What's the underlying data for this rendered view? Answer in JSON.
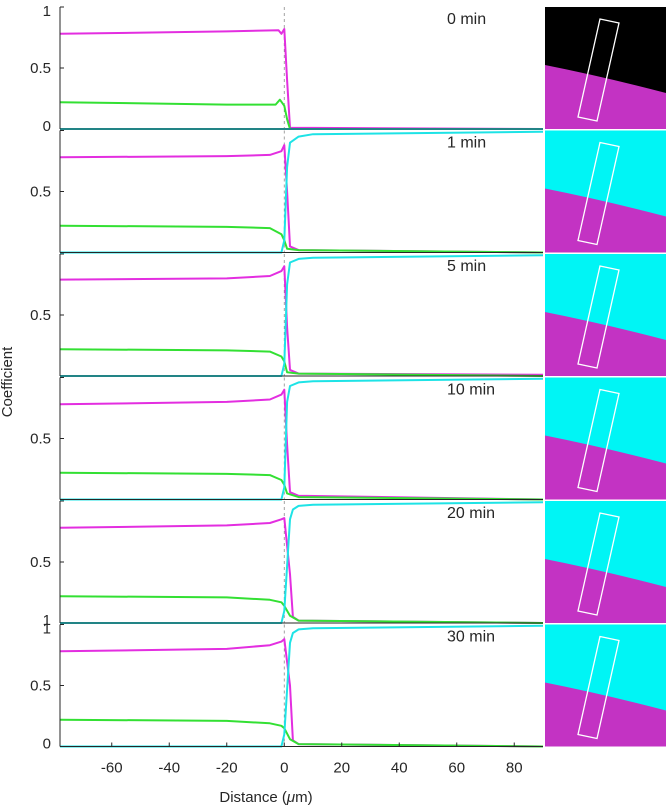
{
  "chart_data": {
    "type": "line",
    "xlabel_prefix": "Distance (",
    "xlabel_mu": "μ",
    "xlabel_suffix": "m)",
    "ylabel": "Coefficient",
    "xlim": [
      -78,
      90
    ],
    "xticks": [
      -60,
      -40,
      -20,
      0,
      20,
      40,
      60,
      80
    ],
    "ylim": [
      0,
      1
    ],
    "interface_x": 0,
    "series_colors": {
      "magenta": "#e32ee0",
      "green": "#33e033",
      "cyan": "#1ee3e6"
    },
    "inset_colors": {
      "black": "#000000",
      "cyan": "#00f5f5",
      "magenta": "#c333c3",
      "box": "#ffffff"
    },
    "panels": [
      {
        "label": "0 min",
        "ytick_labels": [
          "1",
          "0.5",
          "0"
        ],
        "series": [
          {
            "color": "magenta",
            "points": [
              [
                -78,
                0.78
              ],
              [
                -20,
                0.8
              ],
              [
                -2,
                0.81
              ],
              [
                -1,
                0.78
              ],
              [
                0,
                0.82
              ],
              [
                1,
                0.4
              ],
              [
                2,
                0.01
              ],
              [
                90,
                0.0
              ]
            ]
          },
          {
            "color": "green",
            "points": [
              [
                -78,
                0.22
              ],
              [
                -20,
                0.2
              ],
              [
                -3,
                0.2
              ],
              [
                -1.5,
                0.24
              ],
              [
                0,
                0.19
              ],
              [
                1,
                0.08
              ],
              [
                2,
                0.0
              ],
              [
                90,
                0.0
              ]
            ]
          },
          {
            "color": "cyan",
            "points": [
              [
                -78,
                0.0
              ],
              [
                90,
                0.0
              ]
            ]
          }
        ]
      },
      {
        "label": "1 min",
        "ytick_labels": [
          "",
          "0.5",
          ""
        ],
        "series": [
          {
            "color": "magenta",
            "points": [
              [
                -78,
                0.78
              ],
              [
                -20,
                0.79
              ],
              [
                -5,
                0.8
              ],
              [
                -1,
                0.83
              ],
              [
                0,
                0.88
              ],
              [
                1,
                0.5
              ],
              [
                2,
                0.05
              ],
              [
                5,
                0.02
              ],
              [
                90,
                0.0
              ]
            ]
          },
          {
            "color": "green",
            "points": [
              [
                -78,
                0.22
              ],
              [
                -20,
                0.21
              ],
              [
                -5,
                0.2
              ],
              [
                -1,
                0.15
              ],
              [
                0,
                0.1
              ],
              [
                1,
                0.03
              ],
              [
                5,
                0.02
              ],
              [
                90,
                0.0
              ]
            ]
          },
          {
            "color": "cyan",
            "points": [
              [
                -78,
                0.0
              ],
              [
                -1,
                0.0
              ],
              [
                0,
                0.1
              ],
              [
                1,
                0.7
              ],
              [
                2,
                0.9
              ],
              [
                5,
                0.95
              ],
              [
                10,
                0.97
              ],
              [
                90,
                0.99
              ]
            ]
          }
        ]
      },
      {
        "label": "5 min",
        "ytick_labels": [
          "",
          "0.5",
          ""
        ],
        "series": [
          {
            "color": "magenta",
            "points": [
              [
                -78,
                0.79
              ],
              [
                -20,
                0.8
              ],
              [
                -5,
                0.82
              ],
              [
                -1,
                0.86
              ],
              [
                0,
                0.9
              ],
              [
                1,
                0.4
              ],
              [
                2,
                0.05
              ],
              [
                5,
                0.02
              ],
              [
                90,
                0.01
              ]
            ]
          },
          {
            "color": "green",
            "points": [
              [
                -78,
                0.22
              ],
              [
                -20,
                0.21
              ],
              [
                -5,
                0.2
              ],
              [
                -1,
                0.16
              ],
              [
                0,
                0.12
              ],
              [
                1,
                0.03
              ],
              [
                5,
                0.02
              ],
              [
                90,
                0.0
              ]
            ]
          },
          {
            "color": "cyan",
            "points": [
              [
                -78,
                0.0
              ],
              [
                -1,
                0.0
              ],
              [
                0,
                0.1
              ],
              [
                1,
                0.75
              ],
              [
                2,
                0.93
              ],
              [
                5,
                0.96
              ],
              [
                10,
                0.97
              ],
              [
                90,
                0.99
              ]
            ]
          }
        ]
      },
      {
        "label": "10 min",
        "ytick_labels": [
          "",
          "0.5",
          ""
        ],
        "series": [
          {
            "color": "magenta",
            "points": [
              [
                -78,
                0.78
              ],
              [
                -20,
                0.8
              ],
              [
                -5,
                0.82
              ],
              [
                -1,
                0.86
              ],
              [
                0,
                0.9
              ],
              [
                1,
                0.45
              ],
              [
                2,
                0.06
              ],
              [
                5,
                0.03
              ],
              [
                90,
                0.0
              ]
            ]
          },
          {
            "color": "green",
            "points": [
              [
                -78,
                0.22
              ],
              [
                -20,
                0.21
              ],
              [
                -5,
                0.2
              ],
              [
                -1,
                0.16
              ],
              [
                0,
                0.12
              ],
              [
                1,
                0.05
              ],
              [
                5,
                0.02
              ],
              [
                90,
                0.0
              ]
            ]
          },
          {
            "color": "cyan",
            "points": [
              [
                -78,
                0.0
              ],
              [
                -1,
                0.0
              ],
              [
                0,
                0.1
              ],
              [
                1,
                0.8
              ],
              [
                2,
                0.93
              ],
              [
                5,
                0.96
              ],
              [
                10,
                0.97
              ],
              [
                90,
                0.99
              ]
            ]
          }
        ]
      },
      {
        "label": "20 min",
        "ytick_labels": [
          "",
          "0.5",
          "1"
        ],
        "series": [
          {
            "color": "magenta",
            "points": [
              [
                -78,
                0.78
              ],
              [
                -20,
                0.8
              ],
              [
                -5,
                0.82
              ],
              [
                -1,
                0.85
              ],
              [
                0,
                0.86
              ],
              [
                2,
                0.4
              ],
              [
                3,
                0.05
              ],
              [
                5,
                0.02
              ],
              [
                90,
                0.0
              ]
            ]
          },
          {
            "color": "green",
            "points": [
              [
                -78,
                0.22
              ],
              [
                -20,
                0.21
              ],
              [
                -5,
                0.19
              ],
              [
                -1,
                0.17
              ],
              [
                0,
                0.14
              ],
              [
                2,
                0.06
              ],
              [
                5,
                0.02
              ],
              [
                90,
                0.0
              ]
            ]
          },
          {
            "color": "cyan",
            "points": [
              [
                -78,
                0.0
              ],
              [
                -1,
                0.0
              ],
              [
                0,
                0.1
              ],
              [
                2,
                0.85
              ],
              [
                3,
                0.93
              ],
              [
                5,
                0.96
              ],
              [
                10,
                0.97
              ],
              [
                90,
                0.99
              ]
            ]
          }
        ]
      },
      {
        "label": "30 min",
        "ytick_labels": [
          "1",
          "0.5",
          "0"
        ],
        "series": [
          {
            "color": "magenta",
            "points": [
              [
                -78,
                0.78
              ],
              [
                -20,
                0.8
              ],
              [
                -5,
                0.83
              ],
              [
                -1,
                0.86
              ],
              [
                0,
                0.88
              ],
              [
                2,
                0.5
              ],
              [
                3,
                0.05
              ],
              [
                5,
                0.02
              ],
              [
                90,
                0.0
              ]
            ]
          },
          {
            "color": "green",
            "points": [
              [
                -78,
                0.22
              ],
              [
                -20,
                0.21
              ],
              [
                -5,
                0.19
              ],
              [
                -1,
                0.17
              ],
              [
                0,
                0.15
              ],
              [
                2,
                0.06
              ],
              [
                5,
                0.02
              ],
              [
                90,
                0.0
              ]
            ]
          },
          {
            "color": "cyan",
            "points": [
              [
                -78,
                0.0
              ],
              [
                -1,
                0.0
              ],
              [
                0,
                0.1
              ],
              [
                2,
                0.85
              ],
              [
                3,
                0.93
              ],
              [
                5,
                0.96
              ],
              [
                10,
                0.97
              ],
              [
                90,
                0.99
              ]
            ]
          }
        ]
      }
    ],
    "insets": [
      {
        "background": "black"
      },
      {
        "background": "cyan"
      },
      {
        "background": "cyan"
      },
      {
        "background": "cyan"
      },
      {
        "background": "cyan"
      },
      {
        "background": "cyan"
      }
    ]
  }
}
